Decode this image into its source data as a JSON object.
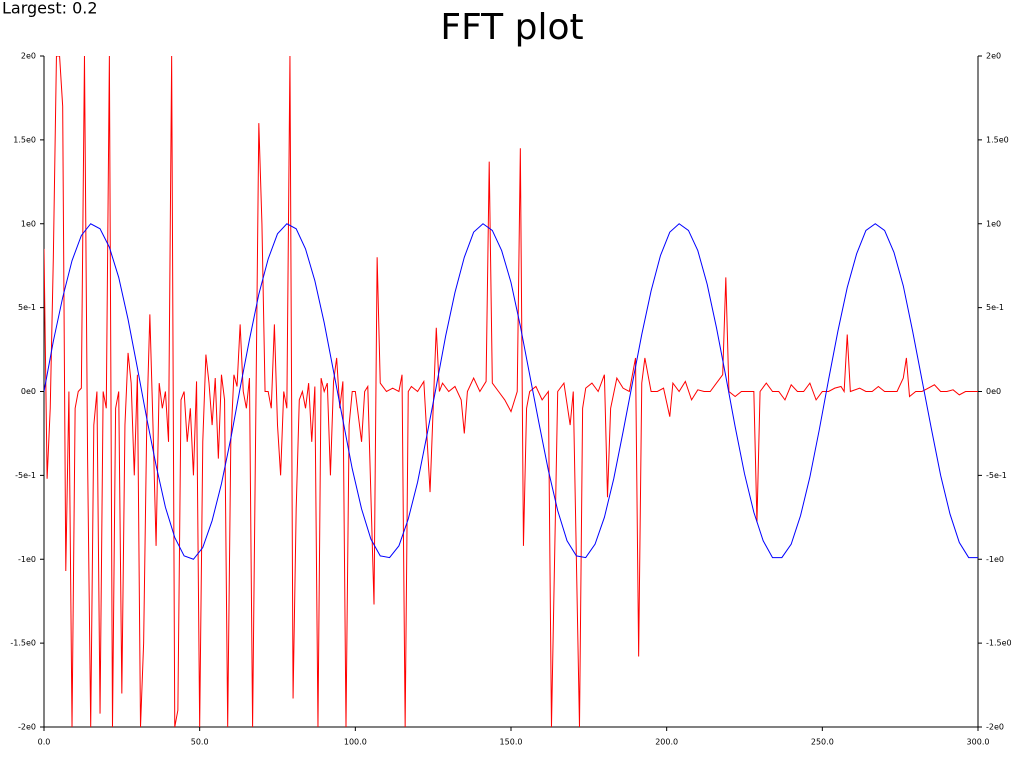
{
  "chart_data": {
    "type": "line",
    "title": "FFT plot",
    "annotation": "Largest: 0.2",
    "xlim": [
      0,
      300
    ],
    "ylim": [
      -2,
      2
    ],
    "mirror_y_axis": true,
    "xticks": [
      {
        "value": 0,
        "label": "0.0"
      },
      {
        "value": 50,
        "label": "50.0"
      },
      {
        "value": 100,
        "label": "100.0"
      },
      {
        "value": 150,
        "label": "150.0"
      },
      {
        "value": 200,
        "label": "200.0"
      },
      {
        "value": 250,
        "label": "250.0"
      },
      {
        "value": 300,
        "label": "300.0"
      }
    ],
    "yticks": [
      {
        "value": -2,
        "label": "-2e0"
      },
      {
        "value": -1.5,
        "label": "-1.5e0"
      },
      {
        "value": -1,
        "label": "-1e0"
      },
      {
        "value": -0.5,
        "label": "-5e-1"
      },
      {
        "value": 0,
        "label": "0e0"
      },
      {
        "value": 0.5,
        "label": "5e-1"
      },
      {
        "value": 1,
        "label": "1e0"
      },
      {
        "value": 1.5,
        "label": "1.5e0"
      },
      {
        "value": 2,
        "label": "2e0"
      }
    ],
    "series": [
      {
        "color": "#ff0000",
        "x": [
          0,
          1,
          2,
          3,
          4,
          5,
          6,
          7,
          8,
          9,
          10,
          11,
          12,
          13,
          14,
          15,
          16,
          17,
          18,
          19,
          20,
          21,
          22,
          23,
          24,
          25,
          26,
          27,
          28,
          29,
          30,
          31,
          32,
          33,
          34,
          35,
          36,
          37,
          38,
          39,
          40,
          41,
          42,
          43,
          44,
          45,
          46,
          47,
          48,
          49,
          50,
          51,
          52,
          53,
          54,
          55,
          56,
          57,
          58,
          59,
          60,
          61,
          62,
          63,
          64,
          65,
          66,
          67,
          68,
          69,
          70,
          71,
          72,
          73,
          74,
          75,
          76,
          77,
          78,
          79,
          80,
          81,
          82,
          83,
          84,
          85,
          86,
          87,
          88,
          89,
          90,
          91,
          92,
          93,
          94,
          95,
          96,
          97,
          98,
          99,
          100,
          102,
          103,
          104,
          106,
          107,
          108,
          110,
          112,
          114,
          115,
          116,
          117,
          118,
          120,
          122,
          124,
          125,
          126,
          127,
          128,
          130,
          132,
          134,
          135,
          136,
          138,
          140,
          142,
          143,
          144,
          146,
          148,
          150,
          152,
          153,
          154,
          155,
          156,
          158,
          160,
          162,
          163,
          165,
          167,
          169,
          170,
          172,
          173,
          174,
          176,
          178,
          180,
          181,
          182,
          184,
          186,
          188,
          190,
          191,
          192,
          193,
          195,
          197,
          199,
          201,
          202,
          204,
          206,
          208,
          210,
          212,
          214,
          216,
          218,
          219,
          220,
          222,
          224,
          226,
          228,
          229,
          230,
          232,
          234,
          236,
          238,
          240,
          242,
          244,
          246,
          248,
          250,
          252,
          254,
          256,
          257,
          258,
          259,
          262,
          264,
          266,
          268,
          270,
          272,
          274,
          276,
          277,
          278,
          280,
          282,
          284,
          286,
          288,
          290,
          292,
          294,
          296,
          298,
          300
        ],
        "values": [
          0.85,
          -0.52,
          -0.1,
          0.8,
          2,
          2,
          1.7,
          -1.07,
          0,
          -2,
          -0.1,
          0,
          0.02,
          2,
          -0.4,
          -2,
          -0.2,
          0,
          -1.92,
          0,
          -0.1,
          2,
          -2,
          -0.1,
          0,
          -1.8,
          -0.2,
          0.23,
          0.05,
          -0.5,
          0.1,
          -2,
          -1.5,
          -0.2,
          0.46,
          -0.2,
          -0.92,
          0.05,
          -0.1,
          0,
          -0.3,
          2,
          -2,
          -1.9,
          -0.05,
          0,
          -0.3,
          -0.1,
          -0.5,
          0.06,
          -2,
          -0.3,
          0.22,
          0.05,
          -0.2,
          0.08,
          -0.4,
          0.1,
          -0.05,
          -2,
          -0.3,
          0.1,
          0.03,
          0.4,
          0,
          -0.1,
          0.08,
          -2,
          -0.2,
          1.6,
          1.0,
          0,
          0,
          -0.1,
          0.4,
          -0.2,
          -0.5,
          0,
          -0.1,
          2,
          -1.83,
          -0.7,
          -0.05,
          0,
          -0.1,
          0.05,
          -0.3,
          0.03,
          -2,
          0.08,
          0,
          0.05,
          -0.5,
          0.06,
          0.2,
          -0.1,
          0.06,
          -2,
          -0.2,
          0,
          0,
          -0.3,
          0,
          0.03,
          -1.27,
          0.8,
          0.05,
          0,
          0.02,
          0,
          0.1,
          -2,
          0,
          0.03,
          0,
          0.06,
          -0.6,
          -0.1,
          0.38,
          0,
          0.05,
          0,
          0.03,
          -0.05,
          -0.25,
          0,
          0.08,
          0,
          0.06,
          1.37,
          0.05,
          0,
          -0.05,
          -0.12,
          0,
          1.45,
          -0.92,
          -0.1,
          0,
          0.03,
          -0.05,
          0,
          -2,
          0,
          0.05,
          -0.2,
          0,
          -2,
          -0.1,
          0.02,
          0.05,
          0,
          0.1,
          -0.63,
          -0.1,
          0.08,
          0.02,
          0,
          0.2,
          -1.58,
          0.05,
          0.2,
          0,
          0,
          0.02,
          -0.15,
          0.05,
          0,
          0.06,
          -0.05,
          0.01,
          0,
          0,
          0.05,
          0.1,
          0.68,
          0,
          -0.03,
          0,
          0,
          0,
          -0.78,
          0,
          0.05,
          0,
          0,
          -0.05,
          0.04,
          0,
          0,
          0.05,
          -0.05,
          0,
          0,
          0.02,
          0.03,
          0,
          0.34,
          0,
          0.02,
          0,
          0,
          0.03,
          0,
          0,
          0,
          0.08,
          0.2,
          -0.03,
          0,
          0,
          0.02,
          0.04,
          0,
          0,
          0.01,
          -0.02,
          0,
          0,
          0
        ]
      },
      {
        "color": "#0000ff",
        "x": [
          0,
          3,
          6,
          9,
          12,
          15,
          18,
          21,
          24,
          27,
          30,
          33,
          36,
          39,
          42,
          45,
          48,
          51,
          54,
          57,
          60,
          63,
          66,
          69,
          72,
          75,
          78,
          81,
          84,
          87,
          90,
          93,
          96,
          99,
          102,
          105,
          108,
          111,
          114,
          117,
          120,
          123,
          126,
          129,
          132,
          135,
          138,
          141,
          144,
          147,
          150,
          153,
          156,
          159,
          162,
          165,
          168,
          171,
          174,
          177,
          180,
          183,
          186,
          189,
          192,
          195,
          198,
          201,
          204,
          207,
          210,
          213,
          216,
          219,
          222,
          225,
          228,
          231,
          234,
          237,
          240,
          243,
          246,
          249,
          252,
          255,
          258,
          261,
          264,
          267,
          270,
          273,
          276,
          279,
          282,
          285,
          288,
          291,
          294,
          297,
          300
        ],
        "values": [
          0,
          0.3,
          0.56,
          0.78,
          0.93,
          1.0,
          0.97,
          0.86,
          0.68,
          0.43,
          0.14,
          -0.16,
          -0.44,
          -0.69,
          -0.87,
          -0.98,
          -1.0,
          -0.93,
          -0.77,
          -0.55,
          -0.28,
          0.02,
          0.31,
          0.58,
          0.79,
          0.94,
          1.0,
          0.97,
          0.85,
          0.66,
          0.41,
          0.12,
          -0.17,
          -0.46,
          -0.7,
          -0.88,
          -0.98,
          -0.99,
          -0.92,
          -0.76,
          -0.54,
          -0.26,
          0.03,
          0.33,
          0.59,
          0.8,
          0.95,
          1.0,
          0.96,
          0.84,
          0.65,
          0.39,
          0.1,
          -0.19,
          -0.47,
          -0.71,
          -0.89,
          -0.98,
          -0.99,
          -0.91,
          -0.75,
          -0.52,
          -0.24,
          0.05,
          0.34,
          0.6,
          0.81,
          0.95,
          1.0,
          0.96,
          0.84,
          0.64,
          0.38,
          0.09,
          -0.21,
          -0.49,
          -0.72,
          -0.89,
          -0.99,
          -0.99,
          -0.91,
          -0.74,
          -0.51,
          -0.23,
          0.07,
          0.36,
          0.62,
          0.82,
          0.96,
          1.0,
          0.96,
          0.83,
          0.63,
          0.36,
          0.07,
          -0.22,
          -0.5,
          -0.73,
          -0.9,
          -0.99,
          -0.99
        ]
      }
    ]
  }
}
